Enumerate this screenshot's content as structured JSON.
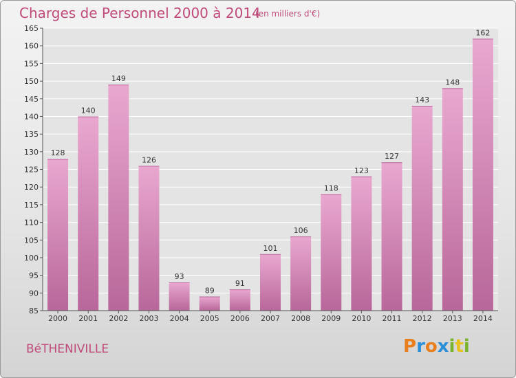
{
  "header": {
    "title": "Charges de Personnel 2000 à 2014",
    "subtitle": "(en milliers d'€)"
  },
  "footer": {
    "commune": "BéTHENIVILLE",
    "logo": {
      "text": "Proxiti",
      "letters": [
        {
          "ch": "P",
          "color": "#e87e1c"
        },
        {
          "ch": "r",
          "color": "#2a8fd6"
        },
        {
          "ch": "o",
          "color": "#e87e1c"
        },
        {
          "ch": "x",
          "color": "#2a8fd6"
        },
        {
          "ch": "i",
          "color": "#7ab32e"
        },
        {
          "ch": "t",
          "color": "#e8c21c"
        },
        {
          "ch": "i",
          "color": "#7ab32e"
        }
      ]
    }
  },
  "colors": {
    "accent": "#c04a7a",
    "bar_top": "#e9a8d0",
    "bar_bottom": "#b8679a"
  },
  "chart_data": {
    "type": "bar",
    "categories": [
      "2000",
      "2001",
      "2002",
      "2003",
      "2004",
      "2005",
      "2006",
      "2007",
      "2008",
      "2009",
      "2010",
      "2011",
      "2012",
      "2013",
      "2014"
    ],
    "values": [
      128,
      140,
      149,
      126,
      93,
      89,
      91,
      101,
      106,
      118,
      123,
      127,
      143,
      148,
      162
    ],
    "title": "Charges de Personnel 2000 à 2014",
    "ylim": [
      85,
      165
    ],
    "yticks": [
      85,
      90,
      95,
      100,
      105,
      110,
      115,
      120,
      125,
      130,
      135,
      140,
      145,
      150,
      155,
      160,
      165
    ],
    "grid": true
  }
}
